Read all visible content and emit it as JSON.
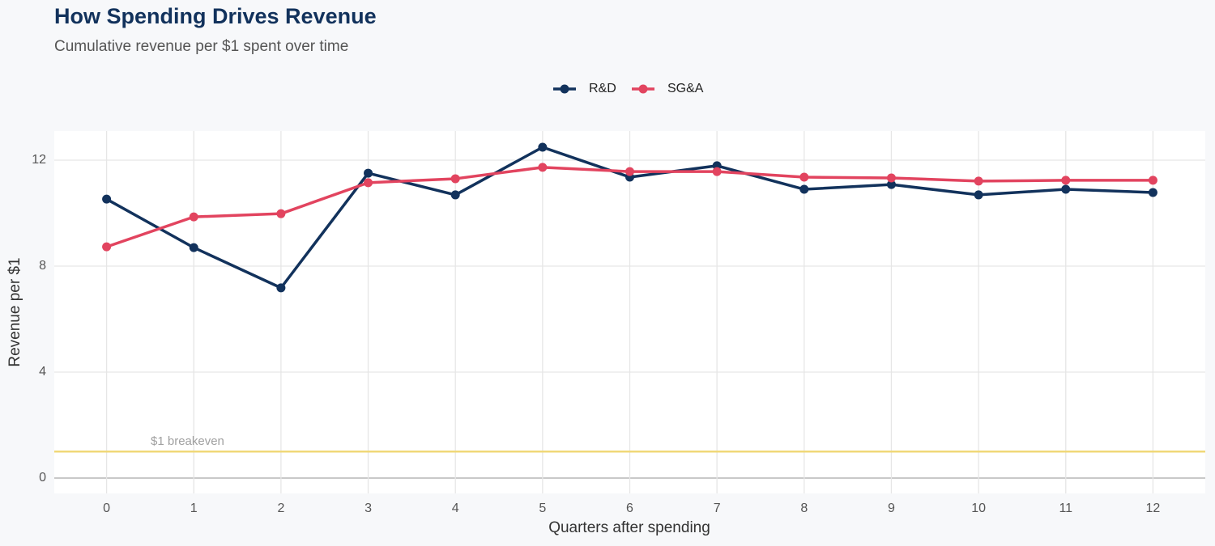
{
  "chart_data": {
    "type": "line",
    "title": "How Spending Drives Revenue",
    "subtitle": "Cumulative revenue per $1 spent over time",
    "x_label": "Quarters after spending",
    "y_label": "Revenue per $1",
    "x": [
      0,
      1,
      2,
      3,
      4,
      5,
      6,
      7,
      8,
      9,
      10,
      11,
      12
    ],
    "series": [
      {
        "name": "R&D",
        "color": "#12325c",
        "values": [
          10.53,
          8.7,
          7.18,
          11.51,
          10.69,
          12.49,
          11.36,
          11.79,
          10.9,
          11.08,
          10.69,
          10.9,
          10.78
        ]
      },
      {
        "name": "SG&A",
        "color": "#e2445f",
        "values": [
          8.73,
          9.86,
          9.98,
          11.15,
          11.3,
          11.73,
          11.57,
          11.57,
          11.36,
          11.33,
          11.21,
          11.24,
          11.24
        ]
      }
    ],
    "xlim": [
      -0.6,
      12.6
    ],
    "ylim": [
      -0.58,
      13.1
    ],
    "xticks": [
      0,
      1,
      2,
      3,
      4,
      5,
      6,
      7,
      8,
      9,
      10,
      11,
      12
    ],
    "yticks": [
      0,
      4,
      8,
      12
    ],
    "grid": true,
    "legend": "top",
    "reference_line": {
      "value": 1,
      "label": "$1 breakeven",
      "color": "#f0d878"
    }
  }
}
